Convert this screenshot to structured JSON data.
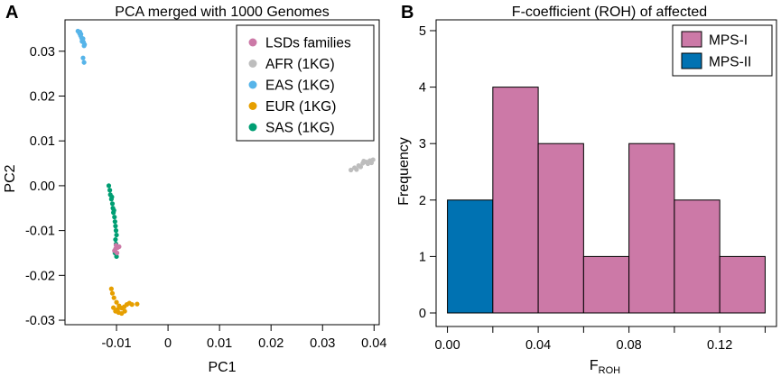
{
  "panels": {
    "a": {
      "letter": "A"
    },
    "b": {
      "letter": "B"
    }
  },
  "chart_data": [
    {
      "id": "pca",
      "type": "scatter",
      "title": "PCA merged with 1000 Genomes",
      "xlabel": "PC1",
      "ylabel": "PC2",
      "xlim": [
        -0.02,
        0.041
      ],
      "ylim": [
        -0.031,
        0.037
      ],
      "x_ticks": [
        -0.01,
        0,
        0.01,
        0.02,
        0.03,
        0.04
      ],
      "x_tick_labels": [
        "-0.01",
        "0",
        "0.01",
        "0.02",
        "0.03",
        "0.04"
      ],
      "y_ticks": [
        -0.03,
        -0.02,
        -0.01,
        0.0,
        0.01,
        0.02,
        0.03
      ],
      "y_tick_labels": [
        "-0.03",
        "-0.02",
        "-0.01",
        "0.00",
        "0.01",
        "0.02",
        "0.03"
      ],
      "legend_position": "top-right",
      "series": [
        {
          "name": "LSDs families",
          "color": "#cc79a7",
          "points": [
            [
              -0.0098,
              -0.0138
            ],
            [
              -0.0102,
              -0.0141
            ],
            [
              -0.0095,
              -0.0136
            ],
            [
              -0.0104,
              -0.0145
            ],
            [
              -0.0099,
              -0.015
            ],
            [
              -0.0101,
              -0.0133
            ]
          ]
        },
        {
          "name": "AFR (1KG)",
          "color": "#bdbdbd",
          "points": [
            [
              0.0355,
              0.0035
            ],
            [
              0.0362,
              0.004
            ],
            [
              0.037,
              0.0045
            ],
            [
              0.0378,
              0.005
            ],
            [
              0.0385,
              0.0053
            ],
            [
              0.0392,
              0.0056
            ],
            [
              0.0398,
              0.0058
            ],
            [
              0.0374,
              0.0042
            ],
            [
              0.0366,
              0.0036
            ],
            [
              0.0388,
              0.0049
            ],
            [
              0.0395,
              0.0051
            ],
            [
              0.038,
              0.0055
            ]
          ]
        },
        {
          "name": "EAS (1KG)",
          "color": "#56b4e9",
          "points": [
            [
              -0.0175,
              0.0345
            ],
            [
              -0.0172,
              0.034
            ],
            [
              -0.017,
              0.0335
            ],
            [
              -0.0168,
              0.033
            ],
            [
              -0.0166,
              0.0325
            ],
            [
              -0.0164,
              0.032
            ],
            [
              -0.0162,
              0.0315
            ],
            [
              -0.0169,
              0.0338
            ],
            [
              -0.0165,
              0.0328
            ],
            [
              -0.0163,
              0.0312
            ],
            [
              -0.0165,
              0.0285
            ],
            [
              -0.0163,
              0.0275
            ],
            [
              -0.0171,
              0.0343
            ],
            [
              -0.0167,
              0.0322
            ]
          ]
        },
        {
          "name": "EUR (1KG)",
          "color": "#e69f00",
          "points": [
            [
              -0.011,
              -0.023
            ],
            [
              -0.0108,
              -0.024
            ],
            [
              -0.0105,
              -0.025
            ],
            [
              -0.01,
              -0.026
            ],
            [
              -0.0095,
              -0.0268
            ],
            [
              -0.009,
              -0.0273
            ],
            [
              -0.0085,
              -0.027
            ],
            [
              -0.008,
              -0.0265
            ],
            [
              -0.0075,
              -0.0262
            ],
            [
              -0.007,
              -0.0265
            ],
            [
              -0.006,
              -0.0264
            ],
            [
              -0.0102,
              -0.028
            ],
            [
              -0.0096,
              -0.0283
            ],
            [
              -0.009,
              -0.0285
            ],
            [
              -0.0084,
              -0.028
            ],
            [
              -0.0106,
              -0.0272
            ],
            [
              -0.0098,
              -0.0276
            ]
          ]
        },
        {
          "name": "SAS (1KG)",
          "color": "#009e73",
          "points": [
            [
              -0.0115,
              0.0
            ],
            [
              -0.0113,
              -0.001
            ],
            [
              -0.0112,
              -0.002
            ],
            [
              -0.011,
              -0.003
            ],
            [
              -0.0108,
              -0.004
            ],
            [
              -0.0107,
              -0.005
            ],
            [
              -0.0106,
              -0.006
            ],
            [
              -0.0104,
              -0.007
            ],
            [
              -0.0103,
              -0.008
            ],
            [
              -0.0102,
              -0.009
            ],
            [
              -0.0101,
              -0.01
            ],
            [
              -0.01,
              -0.011
            ],
            [
              -0.0102,
              -0.012
            ],
            [
              -0.0101,
              -0.013
            ],
            [
              -0.0103,
              -0.015
            ],
            [
              -0.01,
              -0.0158
            ],
            [
              -0.0109,
              -0.0025
            ],
            [
              -0.0105,
              -0.0055
            ]
          ]
        }
      ]
    },
    {
      "id": "froh",
      "type": "bar",
      "title": "F-coefficient (ROH) of affected",
      "xlabel": "F",
      "xlabel_subscript": "ROH",
      "ylabel": "Frequency",
      "xlim": [
        -0.005,
        0.145
      ],
      "ylim": [
        0,
        5
      ],
      "x_ticks": [
        0.0,
        0.02,
        0.04,
        0.06,
        0.08,
        0.1,
        0.12,
        0.14
      ],
      "x_tick_labels": [
        "0.00",
        "",
        "0.04",
        "",
        "0.08",
        "",
        "0.12",
        ""
      ],
      "y_ticks": [
        0,
        1,
        2,
        3,
        4,
        5
      ],
      "y_tick_labels": [
        "0",
        "1",
        "2",
        "3",
        "4",
        "5"
      ],
      "legend_position": "top-right",
      "legend": [
        {
          "name": "MPS-I",
          "color": "#cc79a7"
        },
        {
          "name": "MPS-II",
          "color": "#0072b2"
        }
      ],
      "bins": [
        {
          "x0": 0.0,
          "x1": 0.02,
          "value": 2,
          "series": "MPS-II",
          "color": "#0072b2"
        },
        {
          "x0": 0.02,
          "x1": 0.04,
          "value": 4,
          "series": "MPS-I",
          "color": "#cc79a7"
        },
        {
          "x0": 0.04,
          "x1": 0.06,
          "value": 3,
          "series": "MPS-I",
          "color": "#cc79a7"
        },
        {
          "x0": 0.06,
          "x1": 0.08,
          "value": 1,
          "series": "MPS-I",
          "color": "#cc79a7"
        },
        {
          "x0": 0.08,
          "x1": 0.1,
          "value": 3,
          "series": "MPS-I",
          "color": "#cc79a7"
        },
        {
          "x0": 0.1,
          "x1": 0.12,
          "value": 2,
          "series": "MPS-I",
          "color": "#cc79a7"
        },
        {
          "x0": 0.12,
          "x1": 0.14,
          "value": 1,
          "series": "MPS-I",
          "color": "#cc79a7"
        }
      ]
    }
  ]
}
